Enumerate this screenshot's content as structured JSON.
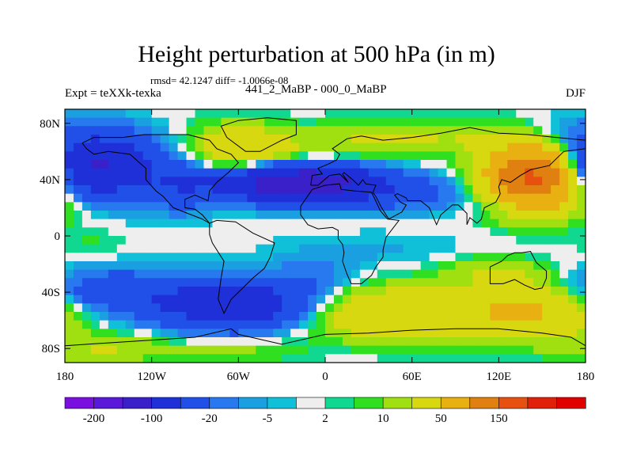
{
  "title": "Height perturbation at 500 hPa (in m)",
  "stats_text": "rmsd= 42.1247 diff= -1.0066e-08",
  "left_label": "Expt = teXXk-texka",
  "center_label": "441_2_MaBP - 000_0_MaBP",
  "right_label": "DJF",
  "chart_data": {
    "type": "heatmap",
    "title": "Height perturbation at 500 hPa (in m)",
    "projection": "cylindrical equidistant",
    "xlim": [
      -180,
      180
    ],
    "ylim": [
      -90,
      90
    ],
    "x_ticks": [
      "180",
      "120W",
      "60W",
      "0",
      "60E",
      "120E",
      "180"
    ],
    "y_ticks": [
      "80N",
      "40N",
      "0",
      "40S",
      "80S"
    ],
    "colorbar": {
      "colors": [
        "#7a10e0",
        "#5a18d8",
        "#3a20c8",
        "#2030d8",
        "#2050e8",
        "#2878f0",
        "#1aa0e0",
        "#10c0d8",
        "#eeeeee",
        "#10d890",
        "#30e020",
        "#a0e010",
        "#d8d810",
        "#e8b010",
        "#e08010",
        "#e85010",
        "#e02008",
        "#e00000"
      ],
      "tick_labels": [
        "-200",
        "-100",
        "-20",
        "-5",
        "2",
        "10",
        "50",
        "150"
      ],
      "tick_label_boundaries": [
        1,
        3,
        5,
        7,
        9,
        11,
        13,
        15
      ]
    },
    "field_blobs": [
      {
        "lon": -160,
        "lat": 50,
        "rlon": 40,
        "rlat": 22,
        "amp": -110
      },
      {
        "lon": -100,
        "lat": 35,
        "rlon": 22,
        "rlat": 18,
        "amp": -30
      },
      {
        "lon": -60,
        "lat": 60,
        "rlon": 32,
        "rlat": 18,
        "amp": 45
      },
      {
        "lon": -30,
        "lat": 55,
        "rlon": 35,
        "rlat": 14,
        "amp": 12
      },
      {
        "lon": 20,
        "lat": 65,
        "rlon": 40,
        "rlat": 15,
        "amp": 15
      },
      {
        "lon": 80,
        "lat": 70,
        "rlon": 60,
        "rlat": 12,
        "amp": 18
      },
      {
        "lon": -20,
        "lat": 38,
        "rlon": 55,
        "rlat": 13,
        "amp": -150
      },
      {
        "lon": 55,
        "lat": 30,
        "rlon": 45,
        "rlat": 12,
        "amp": -25
      },
      {
        "lon": 120,
        "lat": 20,
        "rlon": 20,
        "rlat": 6,
        "amp": -10
      },
      {
        "lon": 145,
        "lat": 42,
        "rlon": 32,
        "rlat": 22,
        "amp": 170
      },
      {
        "lon": 155,
        "lat": 72,
        "rlon": 22,
        "rlat": 12,
        "amp": -12
      },
      {
        "lon": -175,
        "lat": 20,
        "rlon": 25,
        "rlat": 12,
        "amp": 8
      },
      {
        "lon": -160,
        "lat": -5,
        "rlon": 25,
        "rlat": 10,
        "amp": 6
      },
      {
        "lon": 30,
        "lat": -10,
        "rlon": 70,
        "rlat": 12,
        "amp": -6
      },
      {
        "lon": -150,
        "lat": -40,
        "rlon": 60,
        "rlat": 16,
        "amp": -40
      },
      {
        "lon": -60,
        "lat": -50,
        "rlon": 50,
        "rlat": 16,
        "amp": -100
      },
      {
        "lon": -10,
        "lat": -30,
        "rlon": 30,
        "rlat": 14,
        "amp": -15
      },
      {
        "lon": 60,
        "lat": -55,
        "rlon": 85,
        "rlat": 18,
        "amp": 50
      },
      {
        "lon": 150,
        "lat": -50,
        "rlon": 40,
        "rlat": 20,
        "amp": 45
      },
      {
        "lon": 115,
        "lat": -25,
        "rlon": 35,
        "rlat": 10,
        "amp": 18
      },
      {
        "lon": -150,
        "lat": -80,
        "rlon": 50,
        "rlat": 10,
        "amp": 20
      },
      {
        "lon": -60,
        "lat": -82,
        "rlon": 40,
        "rlat": 8,
        "amp": 12
      }
    ],
    "coastlines": [
      [
        [
          -168,
          66
        ],
        [
          -160,
          70
        ],
        [
          -140,
          70
        ],
        [
          -125,
          72
        ],
        [
          -95,
          72
        ],
        [
          -80,
          68
        ],
        [
          -75,
          62
        ],
        [
          -65,
          58
        ],
        [
          -60,
          52
        ],
        [
          -67,
          45
        ],
        [
          -75,
          38
        ],
        [
          -80,
          32
        ],
        [
          -81,
          25
        ],
        [
          -90,
          29
        ],
        [
          -97,
          26
        ],
        [
          -97,
          20
        ],
        [
          -90,
          19
        ],
        [
          -85,
          15
        ],
        [
          -80,
          9
        ],
        [
          -85,
          12
        ],
        [
          -95,
          16
        ],
        [
          -105,
          20
        ],
        [
          -112,
          28
        ],
        [
          -117,
          32
        ],
        [
          -124,
          40
        ],
        [
          -124,
          48
        ],
        [
          -135,
          58
        ],
        [
          -150,
          60
        ],
        [
          -160,
          58
        ],
        [
          -165,
          62
        ],
        [
          -168,
          66
        ]
      ],
      [
        [
          -55,
          60
        ],
        [
          -45,
          60
        ],
        [
          -30,
          68
        ],
        [
          -20,
          72
        ],
        [
          -20,
          82
        ],
        [
          -40,
          84
        ],
        [
          -60,
          82
        ],
        [
          -72,
          78
        ],
        [
          -68,
          70
        ],
        [
          -55,
          60
        ]
      ],
      [
        [
          -80,
          9
        ],
        [
          -75,
          11
        ],
        [
          -62,
          10
        ],
        [
          -50,
          2
        ],
        [
          -35,
          -5
        ],
        [
          -38,
          -15
        ],
        [
          -42,
          -23
        ],
        [
          -50,
          -30
        ],
        [
          -58,
          -38
        ],
        [
          -65,
          -45
        ],
        [
          -70,
          -55
        ],
        [
          -74,
          -45
        ],
        [
          -72,
          -30
        ],
        [
          -70,
          -18
        ],
        [
          -78,
          -5
        ],
        [
          -80,
          1
        ],
        [
          -80,
          9
        ]
      ],
      [
        [
          -10,
          36
        ],
        [
          -9,
          43
        ],
        [
          -2,
          44
        ],
        [
          -5,
          48
        ],
        [
          2,
          51
        ],
        [
          8,
          54
        ],
        [
          10,
          58
        ],
        [
          5,
          62
        ],
        [
          15,
          69
        ],
        [
          25,
          71
        ],
        [
          40,
          68
        ],
        [
          60,
          70
        ],
        [
          80,
          73
        ],
        [
          100,
          77
        ],
        [
          120,
          73
        ],
        [
          140,
          72
        ],
        [
          160,
          70
        ],
        [
          180,
          68
        ]
      ],
      [
        [
          180,
          62
        ],
        [
          165,
          60
        ],
        [
          160,
          55
        ],
        [
          155,
          50
        ],
        [
          142,
          47
        ],
        [
          135,
          43
        ],
        [
          128,
          38
        ],
        [
          122,
          40
        ],
        [
          120,
          35
        ],
        [
          121,
          30
        ],
        [
          118,
          24
        ],
        [
          110,
          20
        ],
        [
          108,
          12
        ],
        [
          105,
          9
        ],
        [
          100,
          13
        ],
        [
          98,
          8
        ],
        [
          98,
          16
        ],
        [
          92,
          22
        ],
        [
          88,
          22
        ],
        [
          80,
          15
        ],
        [
          77,
          8
        ],
        [
          72,
          20
        ],
        [
          66,
          25
        ],
        [
          57,
          25
        ],
        [
          56,
          27
        ],
        [
          50,
          30
        ],
        [
          48,
          29
        ],
        [
          52,
          24
        ],
        [
          56,
          22
        ],
        [
          53,
          17
        ],
        [
          44,
          12
        ],
        [
          42,
          15
        ],
        [
          39,
          20
        ],
        [
          35,
          28
        ],
        [
          33,
          31
        ],
        [
          35,
          36
        ],
        [
          28,
          37
        ],
        [
          26,
          40
        ],
        [
          23,
          36
        ],
        [
          19,
          40
        ],
        [
          13,
          45
        ],
        [
          12,
          44
        ],
        [
          16,
          38
        ],
        [
          10,
          44
        ],
        [
          3,
          43
        ],
        [
          -5,
          36
        ],
        [
          -10,
          36
        ]
      ],
      [
        [
          -17,
          21
        ],
        [
          -17,
          15
        ],
        [
          -12,
          8
        ],
        [
          -5,
          5
        ],
        [
          5,
          6
        ],
        [
          9,
          4
        ],
        [
          9,
          -2
        ],
        [
          12,
          -6
        ],
        [
          13,
          -12
        ],
        [
          12,
          -18
        ],
        [
          15,
          -27
        ],
        [
          18,
          -34
        ],
        [
          25,
          -34
        ],
        [
          32,
          -28
        ],
        [
          35,
          -22
        ],
        [
          40,
          -15
        ],
        [
          40,
          -10
        ],
        [
          42,
          -1
        ],
        [
          51,
          11
        ],
        [
          43,
          12
        ],
        [
          38,
          18
        ],
        [
          34,
          27
        ],
        [
          32,
          31
        ],
        [
          20,
          32
        ],
        [
          11,
          33
        ],
        [
          10,
          37
        ],
        [
          0,
          36
        ],
        [
          -9,
          33
        ],
        [
          -17,
          21
        ]
      ],
      [
        [
          114,
          -22
        ],
        [
          114,
          -34
        ],
        [
          123,
          -34
        ],
        [
          131,
          -31
        ],
        [
          138,
          -35
        ],
        [
          145,
          -38
        ],
        [
          150,
          -37
        ],
        [
          153,
          -30
        ],
        [
          153,
          -25
        ],
        [
          146,
          -19
        ],
        [
          142,
          -11
        ],
        [
          136,
          -12
        ],
        [
          131,
          -12
        ],
        [
          126,
          -14
        ],
        [
          122,
          -18
        ],
        [
          114,
          -22
        ]
      ],
      [
        [
          -180,
          -78
        ],
        [
          -150,
          -76
        ],
        [
          -120,
          -74
        ],
        [
          -90,
          -72
        ],
        [
          -65,
          -66
        ],
        [
          -60,
          -70
        ],
        [
          -30,
          -77
        ],
        [
          0,
          -70
        ],
        [
          30,
          -69
        ],
        [
          60,
          -67
        ],
        [
          90,
          -66
        ],
        [
          120,
          -66
        ],
        [
          150,
          -69
        ],
        [
          170,
          -72
        ],
        [
          180,
          -78
        ]
      ]
    ]
  }
}
